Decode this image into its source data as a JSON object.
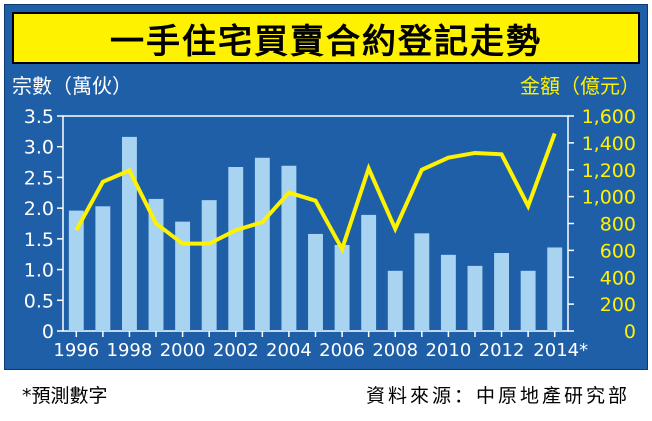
{
  "title": "一手住宅買賣合約登記走勢",
  "footnote": "*預測數字",
  "source": "資料來源：中原地產研究部",
  "colors": {
    "background": "#1f5fa8",
    "bar": "#a8d4f2",
    "line": "#fff200",
    "title_bg": "#fff200",
    "axis_text_left": "#ffffff",
    "axis_text_right": "#fff200"
  },
  "chart_data": {
    "type": "bar",
    "x": [
      1996,
      1997,
      1998,
      1999,
      2000,
      2001,
      2002,
      2003,
      2004,
      2005,
      2006,
      2007,
      2008,
      2009,
      2010,
      2011,
      2012,
      2013,
      2014
    ],
    "x_tick_labels": [
      "1996",
      "1998",
      "2000",
      "2002",
      "2004",
      "2006",
      "2008",
      "2010",
      "2012",
      "2014*"
    ],
    "ylabel": "宗數（萬伙）",
    "ylim": [
      0,
      3.5
    ],
    "y_ticks": [
      "0",
      "0.5",
      "1.0",
      "1.5",
      "2.0",
      "2.5",
      "3.0",
      "3.5"
    ],
    "y2label": "金額（億元）",
    "y2lim": [
      0,
      1600
    ],
    "y2_ticks": [
      "0",
      "200",
      "400",
      "600",
      "800",
      "1,000",
      "1,200",
      "1,400",
      "1,600"
    ],
    "series": [
      {
        "type": "bar",
        "axis": "left",
        "values": [
          1.96,
          2.03,
          3.16,
          2.15,
          1.78,
          2.13,
          2.67,
          2.82,
          2.69,
          1.58,
          1.4,
          1.89,
          0.98,
          1.59,
          1.24,
          1.06,
          1.27,
          0.98,
          1.36
        ]
      },
      {
        "type": "line",
        "axis": "right",
        "values": [
          750,
          1110,
          1195,
          800,
          650,
          650,
          750,
          810,
          1030,
          970,
          610,
          1210,
          760,
          1200,
          1290,
          1325,
          1315,
          930,
          1470
        ]
      }
    ],
    "grid": false,
    "legend": "none"
  }
}
